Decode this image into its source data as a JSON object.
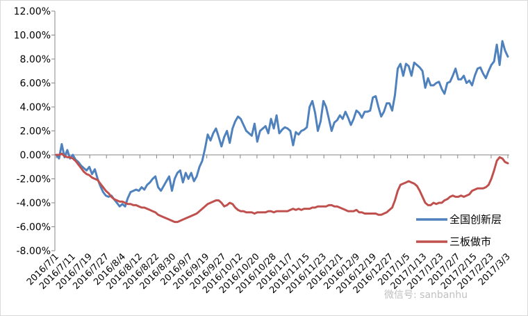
{
  "chart_data": {
    "type": "line",
    "title": "",
    "xlabel": "",
    "ylabel": "",
    "ylim": [
      -0.08,
      0.12
    ],
    "y_ticks": [
      "12.00%",
      "10.00%",
      "8.00%",
      "6.00%",
      "4.00%",
      "2.00%",
      "0.00%",
      "-2.00%",
      "-4.00%",
      "-6.00%",
      "-8.00%"
    ],
    "x_tick_labels": [
      "2016/7/1",
      "2016/7/11",
      "2016/7/19",
      "2016/7/27",
      "2016/8/4",
      "2016/8/12",
      "2016/8/22",
      "2016/8/30",
      "2016/9/7",
      "2016/9/19",
      "2016/9/27",
      "2016/10/12",
      "2016/10/20",
      "2016/10/28",
      "2016/11/7",
      "2016/11/15",
      "2016/11/23",
      "2016/12/1",
      "2016/12/9",
      "2016/12/19",
      "2016/12/27",
      "2017/1/5",
      "2017/1/13",
      "2017/1/23",
      "2017/2/7",
      "2017/2/15",
      "2017/2/23",
      "2017/3/3"
    ],
    "grid": false,
    "legend_position": "bottom-right",
    "series": [
      {
        "name": "全国创新层",
        "color": "#4F81BD",
        "values": [
          0.0,
          -0.003,
          0.009,
          -0.002,
          0.004,
          -0.003,
          0.0,
          -0.004,
          -0.006,
          -0.009,
          -0.011,
          -0.013,
          -0.01,
          -0.016,
          -0.012,
          -0.02,
          -0.026,
          -0.031,
          -0.034,
          -0.035,
          -0.034,
          -0.037,
          -0.04,
          -0.043,
          -0.041,
          -0.043,
          -0.036,
          -0.031,
          -0.03,
          -0.029,
          -0.03,
          -0.027,
          -0.029,
          -0.025,
          -0.023,
          -0.02,
          -0.018,
          -0.027,
          -0.03,
          -0.026,
          -0.022,
          -0.018,
          -0.03,
          -0.02,
          -0.015,
          -0.013,
          -0.023,
          -0.015,
          -0.02,
          -0.015,
          -0.022,
          -0.018,
          -0.01,
          -0.005,
          0.005,
          0.017,
          0.012,
          0.018,
          0.022,
          0.015,
          0.007,
          0.015,
          0.02,
          0.01,
          0.022,
          0.028,
          0.032,
          0.03,
          0.025,
          0.02,
          0.018,
          0.016,
          0.026,
          0.011,
          0.02,
          0.022,
          0.024,
          0.018,
          0.03,
          0.022,
          0.033,
          0.018,
          0.021,
          0.023,
          0.022,
          0.02,
          0.008,
          0.019,
          0.017,
          0.02,
          0.021,
          0.023,
          0.04,
          0.045,
          0.035,
          0.02,
          0.028,
          0.045,
          0.04,
          0.03,
          0.02,
          0.027,
          0.029,
          0.033,
          0.03,
          0.036,
          0.031,
          0.025,
          0.03,
          0.037,
          0.035,
          0.031,
          0.036,
          0.036,
          0.037,
          0.048,
          0.049,
          0.04,
          0.032,
          0.036,
          0.043,
          0.043,
          0.037,
          0.05,
          0.072,
          0.076,
          0.066,
          0.076,
          0.074,
          0.066,
          0.077,
          0.075,
          0.073,
          0.07,
          0.056,
          0.064,
          0.058,
          0.058,
          0.06,
          0.061,
          0.055,
          0.051,
          0.06,
          0.061,
          0.066,
          0.072,
          0.063,
          0.063,
          0.066,
          0.06,
          0.062,
          0.058,
          0.066,
          0.072,
          0.073,
          0.068,
          0.064,
          0.07,
          0.075,
          0.078,
          0.092,
          0.075,
          0.095,
          0.087,
          0.082
        ]
      },
      {
        "name": "三板做市",
        "color": "#C0504D",
        "values": [
          0.0,
          0.0,
          0.001,
          -0.001,
          -0.002,
          -0.002,
          -0.003,
          -0.005,
          -0.008,
          -0.011,
          -0.014,
          -0.016,
          -0.017,
          -0.019,
          -0.02,
          -0.021,
          -0.024,
          -0.027,
          -0.03,
          -0.032,
          -0.035,
          -0.037,
          -0.038,
          -0.039,
          -0.039,
          -0.04,
          -0.041,
          -0.041,
          -0.042,
          -0.042,
          -0.043,
          -0.044,
          -0.044,
          -0.045,
          -0.046,
          -0.047,
          -0.048,
          -0.05,
          -0.051,
          -0.052,
          -0.053,
          -0.054,
          -0.055,
          -0.056,
          -0.056,
          -0.055,
          -0.054,
          -0.053,
          -0.052,
          -0.051,
          -0.05,
          -0.049,
          -0.047,
          -0.045,
          -0.043,
          -0.041,
          -0.04,
          -0.039,
          -0.038,
          -0.038,
          -0.04,
          -0.043,
          -0.042,
          -0.04,
          -0.041,
          -0.044,
          -0.046,
          -0.047,
          -0.047,
          -0.048,
          -0.048,
          -0.048,
          -0.049,
          -0.048,
          -0.048,
          -0.048,
          -0.048,
          -0.047,
          -0.047,
          -0.048,
          -0.047,
          -0.047,
          -0.047,
          -0.047,
          -0.047,
          -0.046,
          -0.045,
          -0.046,
          -0.045,
          -0.046,
          -0.045,
          -0.045,
          -0.045,
          -0.044,
          -0.044,
          -0.043,
          -0.043,
          -0.043,
          -0.043,
          -0.042,
          -0.042,
          -0.043,
          -0.043,
          -0.044,
          -0.045,
          -0.046,
          -0.047,
          -0.047,
          -0.047,
          -0.046,
          -0.048,
          -0.048,
          -0.049,
          -0.049,
          -0.049,
          -0.049,
          -0.049,
          -0.05,
          -0.05,
          -0.049,
          -0.048,
          -0.046,
          -0.044,
          -0.038,
          -0.03,
          -0.025,
          -0.024,
          -0.023,
          -0.022,
          -0.023,
          -0.024,
          -0.026,
          -0.03,
          -0.035,
          -0.04,
          -0.042,
          -0.042,
          -0.04,
          -0.041,
          -0.04,
          -0.04,
          -0.038,
          -0.037,
          -0.035,
          -0.034,
          -0.035,
          -0.035,
          -0.034,
          -0.035,
          -0.034,
          -0.033,
          -0.03,
          -0.029,
          -0.028,
          -0.028,
          -0.028,
          -0.027,
          -0.025,
          -0.02,
          -0.013,
          -0.005,
          -0.002,
          -0.003,
          -0.006,
          -0.007
        ]
      }
    ]
  },
  "watermark": "微信号: sanbanhu"
}
